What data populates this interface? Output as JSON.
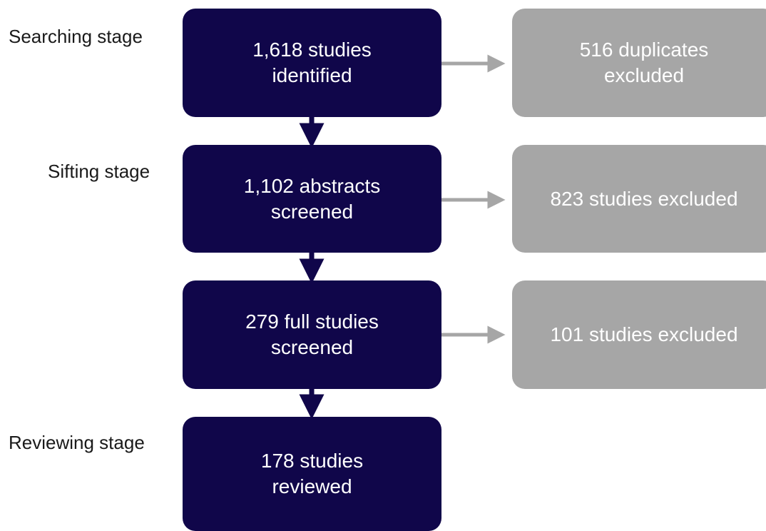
{
  "colors": {
    "main_box": "#10064a",
    "excluded_box": "#a6a6a6",
    "main_arrow": "#10064a",
    "excluded_arrow": "#a6a6a6",
    "box_text": "#ffffff",
    "label_text": "#1a1a1a"
  },
  "stages": {
    "searching": "Searching stage",
    "sifting": "Sifting stage",
    "reviewing": "Reviewing stage"
  },
  "flow": [
    {
      "line1": "1,618 studies",
      "line2": "identified"
    },
    {
      "line1": "1,102 abstracts",
      "line2": "screened"
    },
    {
      "line1": "279 full studies",
      "line2": "screened"
    },
    {
      "line1": "178 studies",
      "line2": "reviewed"
    }
  ],
  "exclusions": [
    {
      "line1": "516 duplicates",
      "line2": "excluded"
    },
    {
      "line1": "823 studies excluded",
      "line2": ""
    },
    {
      "line1": "101 studies excluded",
      "line2": ""
    }
  ]
}
